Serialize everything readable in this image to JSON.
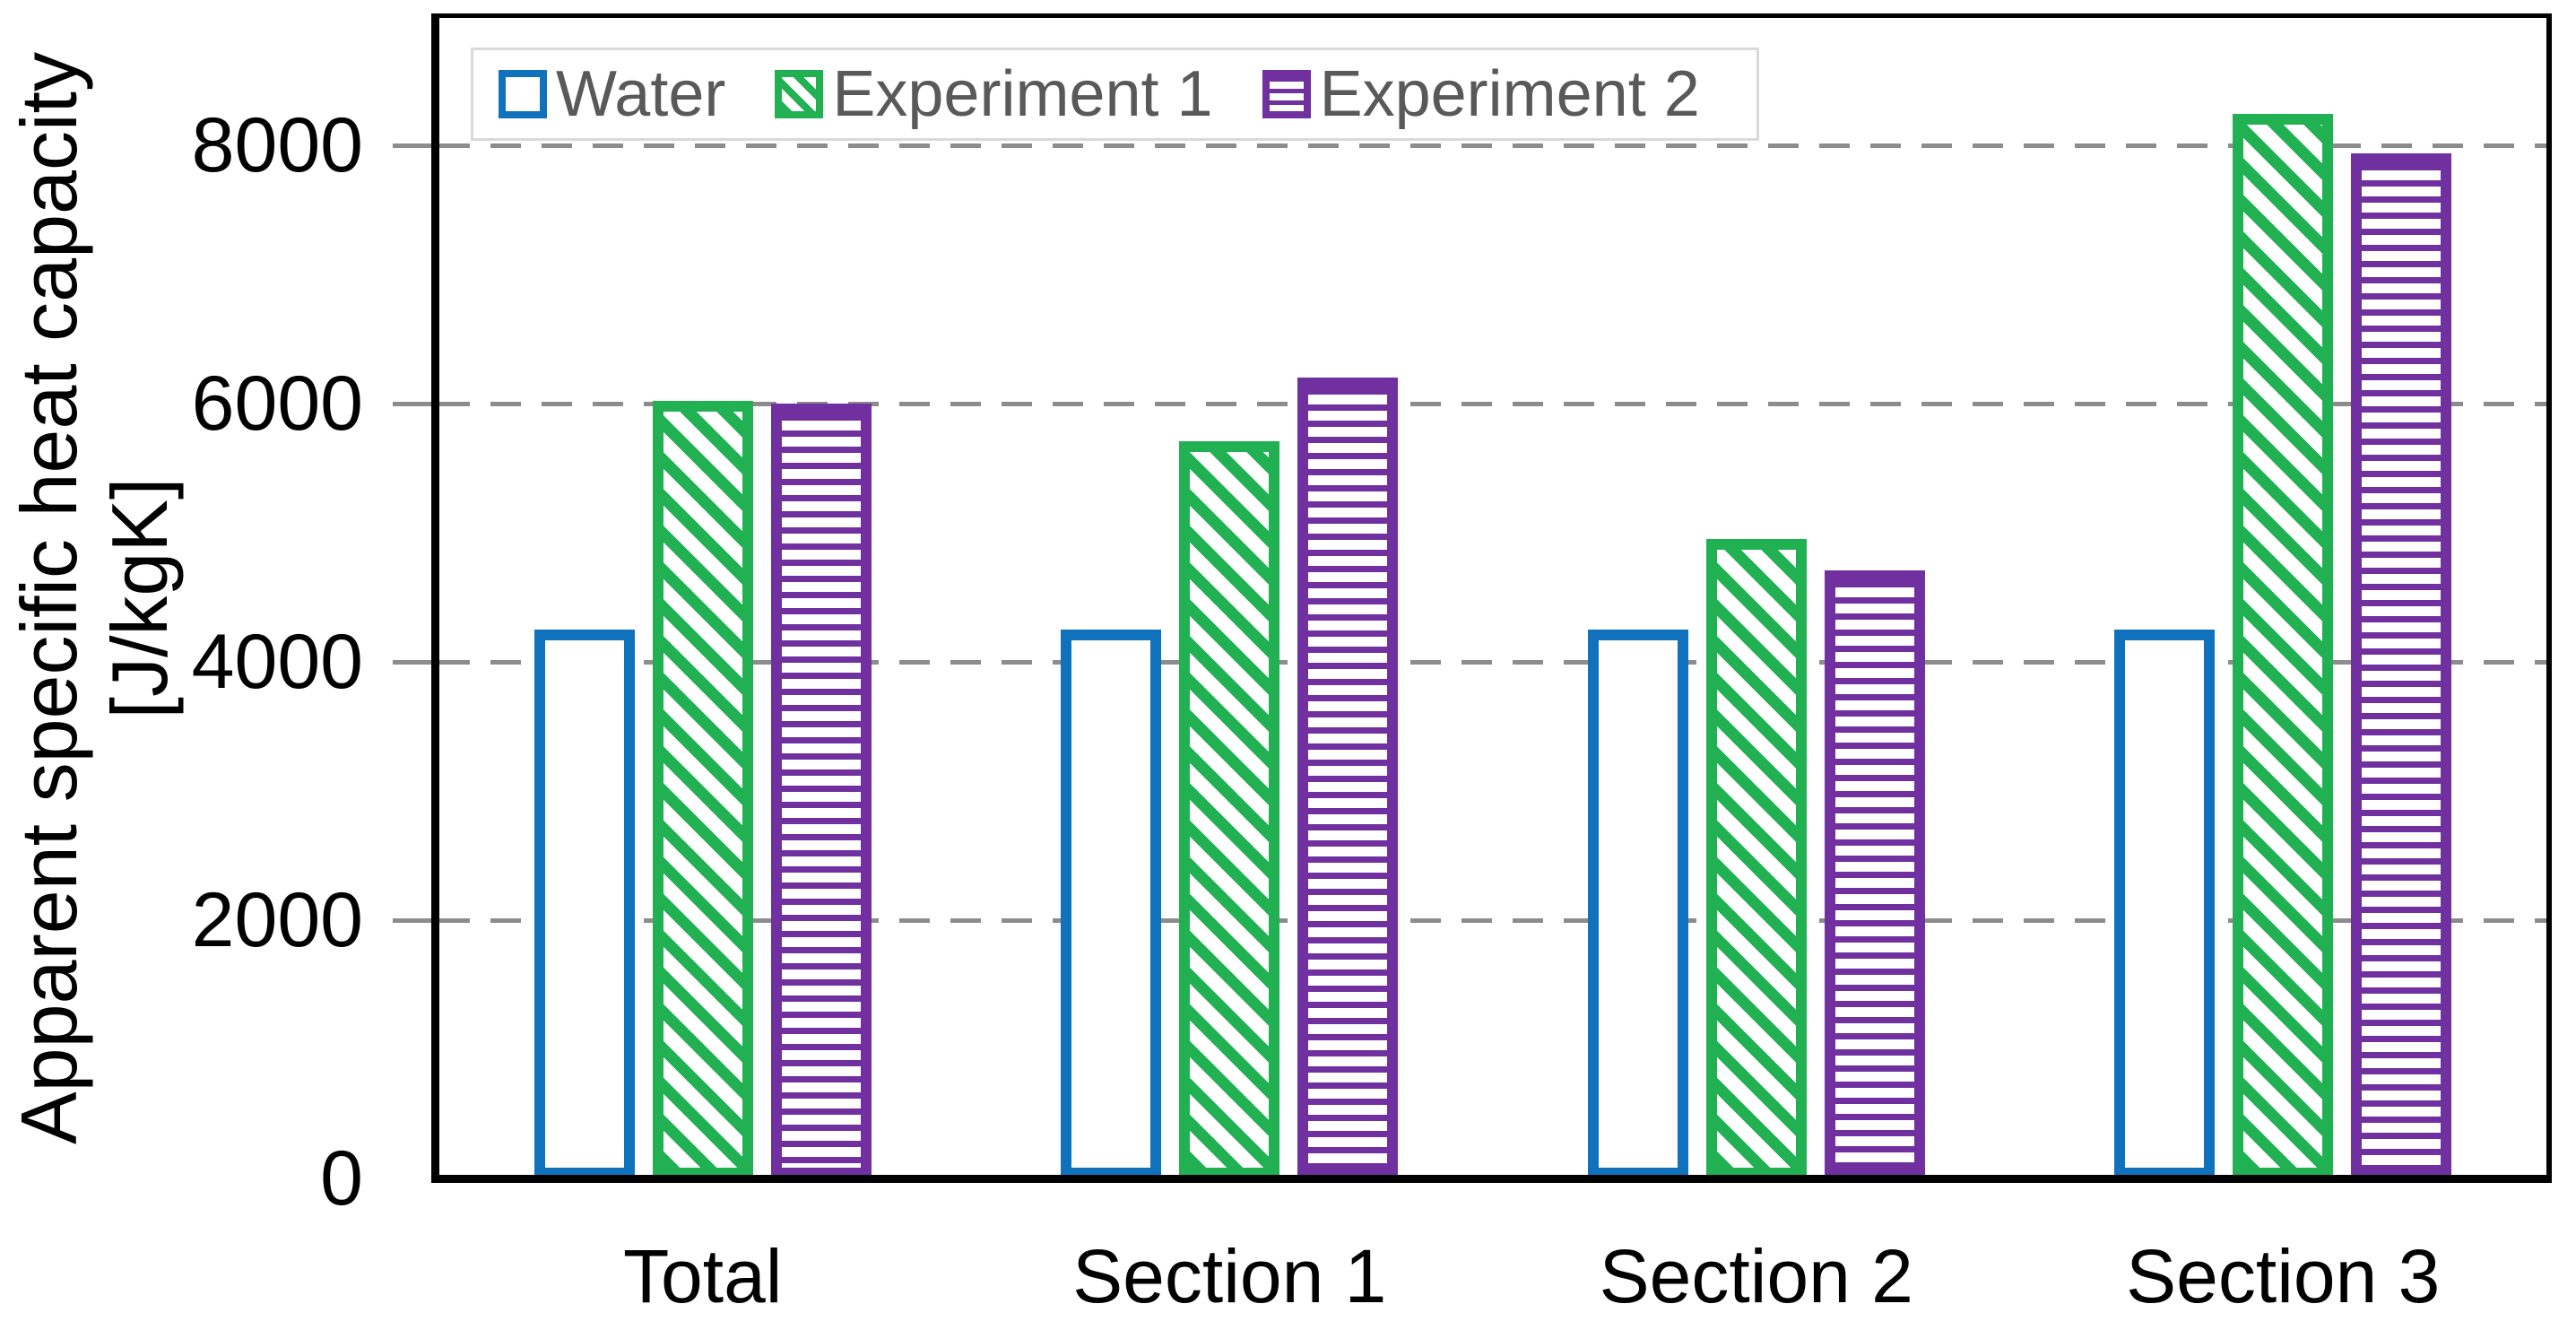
{
  "chart_data": {
    "type": "bar",
    "title": "",
    "ylabel_line1": "Apparent specific heat capacity",
    "ylabel_line2": "[J/kgK]",
    "categories": [
      "Total",
      "Section 1",
      "Section 2",
      "Section 3"
    ],
    "series": [
      {
        "name": "Water",
        "color": "#1072bd",
        "pattern": "plain",
        "values": [
          4250,
          4250,
          4250,
          4250
        ]
      },
      {
        "name": "Experiment 1",
        "color": "#21b152",
        "pattern": "diagonal",
        "values": [
          6020,
          5710,
          4950,
          8240
        ]
      },
      {
        "name": "Experiment 2",
        "color": "#7030a0",
        "pattern": "horizontal",
        "values": [
          6000,
          6200,
          4710,
          7940
        ]
      }
    ],
    "ylim": [
      0,
      9000
    ],
    "yticks": [
      0,
      2000,
      4000,
      6000,
      8000
    ],
    "grid": "horizontal-dashed",
    "legend_position": "top-inside"
  },
  "colors": {
    "axis": "#000000",
    "gridline": "#8c8c8c",
    "legend_border": "#d9d9d9",
    "legend_text": "#595959",
    "background": "#ffffff"
  }
}
